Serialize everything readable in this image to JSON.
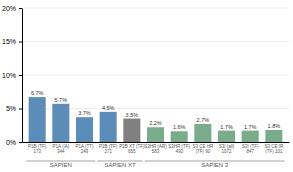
{
  "chart_data": {
    "type": "bar",
    "categories": [
      "P1B (TF)\n173",
      "P1A (IA)\n344",
      "P1A (TT)\n249",
      "P2B (TF)\n271",
      "P2B XT (TF)\n655",
      "S3HR (AR)\n583",
      "S3HR (TF)\n490",
      "S3 CE HR\n(TF) 90",
      "S3I (all)\n1072",
      "S3I (TF)\n847",
      "S3 CE IR\n(TF) 101"
    ],
    "values": [
      6.7,
      5.7,
      3.7,
      4.5,
      3.5,
      2.2,
      1.6,
      2.7,
      1.7,
      1.7,
      1.8
    ],
    "value_labels": [
      "6.7%",
      "5.7%",
      "3.7%",
      "4.5%",
      "3.5%",
      "2.2%",
      "1.6%",
      "2.7%",
      "1.7%",
      "1.7%",
      "1.8%"
    ],
    "data_labels": true,
    "colors": [
      "#5b8db8",
      "#5b8db8",
      "#5b8db8",
      "#5b8db8",
      "#808080",
      "#7aab8a",
      "#7aab8a",
      "#7aab8a",
      "#7aab8a",
      "#7aab8a",
      "#7aab8a"
    ],
    "ylim": [
      0,
      20
    ],
    "yticks": [
      {
        "value": 0,
        "label": "0%"
      },
      {
        "value": 5,
        "label": "5%"
      },
      {
        "value": 10,
        "label": "10%"
      },
      {
        "value": 15,
        "label": "15%"
      },
      {
        "value": 20,
        "label": "20%"
      }
    ],
    "grid": true,
    "groups": [
      {
        "label": "SAPIEN",
        "start": 0,
        "end": 2
      },
      {
        "label": "SAPIEN XT",
        "start": 3,
        "end": 4
      },
      {
        "label": "SAPIEN 3",
        "start": 5,
        "end": 10
      }
    ]
  }
}
